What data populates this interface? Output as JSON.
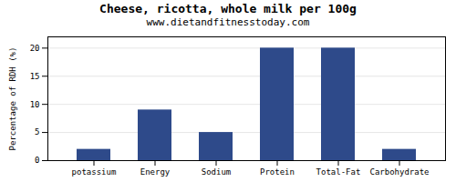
{
  "chart_data": {
    "type": "bar",
    "title": "Cheese, ricotta, whole milk per 100g",
    "subtitle": "www.dietandfitnesstoday.com",
    "categories": [
      "potassium",
      "Energy",
      "Sodium",
      "Protein",
      "Total-Fat",
      "Carbohydrate"
    ],
    "values": [
      2,
      9,
      5,
      20,
      20,
      2
    ],
    "color": "#2e4a8a",
    "ylabel": "Percentage of RDH (%)",
    "ylim": [
      0,
      22
    ],
    "yticks": [
      0,
      5,
      10,
      15,
      20
    ],
    "grid": true
  }
}
